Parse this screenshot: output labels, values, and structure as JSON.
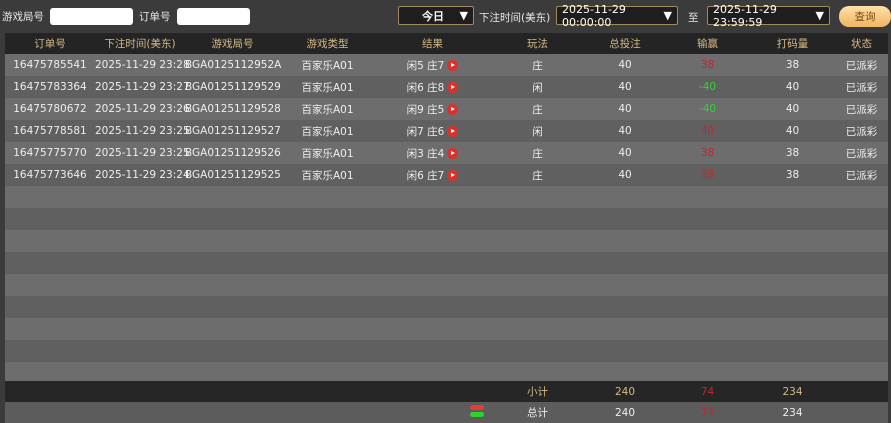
{
  "filters": {
    "round_label": "游戏局号",
    "round_value": "",
    "order_label": "订单号",
    "order_value": "",
    "range_select": "今日",
    "time_label": "下注时间(美东)",
    "start_time": "2025-11-29 00:00:00",
    "to_label": "至",
    "end_time": "2025-11-29 23:59:59",
    "query_label": "查询"
  },
  "columns": [
    "订单号",
    "下注时间(美东)",
    "游戏局号",
    "游戏类型",
    "结果",
    "玩法",
    "总投注",
    "输赢",
    "打码量",
    "状态"
  ],
  "rows": [
    {
      "order": "16475785541",
      "time": "2025-11-29 23:28",
      "round": "BGA0125112952A",
      "type": "百家乐A01",
      "result": "闲5 庄7",
      "play": "庄",
      "bet": "40",
      "win": "38",
      "valid": "38",
      "status": "已派彩"
    },
    {
      "order": "16475783364",
      "time": "2025-11-29 23:27",
      "round": "BGA01251129529",
      "type": "百家乐A01",
      "result": "闲6 庄8",
      "play": "闲",
      "bet": "40",
      "win": "-40",
      "valid": "40",
      "status": "已派彩"
    },
    {
      "order": "16475780672",
      "time": "2025-11-29 23:26",
      "round": "BGA01251129528",
      "type": "百家乐A01",
      "result": "闲9 庄5",
      "play": "庄",
      "bet": "40",
      "win": "-40",
      "valid": "40",
      "status": "已派彩"
    },
    {
      "order": "16475778581",
      "time": "2025-11-29 23:25",
      "round": "BGA01251129527",
      "type": "百家乐A01",
      "result": "闲7 庄6",
      "play": "闲",
      "bet": "40",
      "win": "40",
      "valid": "40",
      "status": "已派彩"
    },
    {
      "order": "16475775770",
      "time": "2025-11-29 23:25",
      "round": "BGA01251129526",
      "type": "百家乐A01",
      "result": "闲3 庄4",
      "play": "庄",
      "bet": "40",
      "win": "38",
      "valid": "38",
      "status": "已派彩"
    },
    {
      "order": "16475773646",
      "time": "2025-11-29 23:24",
      "round": "BGA01251129525",
      "type": "百家乐A01",
      "result": "闲6 庄7",
      "play": "庄",
      "bet": "40",
      "win": "38",
      "valid": "38",
      "status": "已派彩"
    }
  ],
  "subtotal": {
    "label": "小计",
    "bet": "240",
    "win": "74",
    "valid": "234"
  },
  "total": {
    "label": "总计",
    "bet": "240",
    "win": "74",
    "valid": "234"
  },
  "colors": {
    "accent": "#d6b986",
    "win_positive": "#c0272d",
    "win_negative": "#2fd62f"
  }
}
